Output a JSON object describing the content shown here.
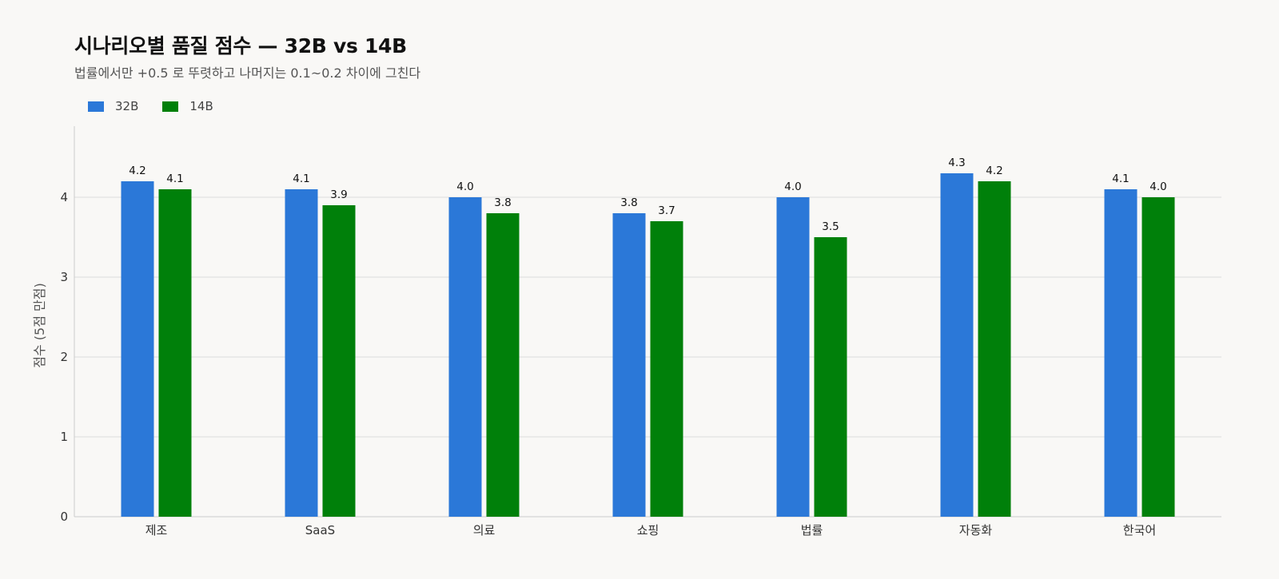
{
  "title": "시나리오별 품질 점수 — 32B vs 14B",
  "subtitle": "법률에서만 +0.5 로 뚜렷하고 나머지는 0.1~0.2 차이에 그친다",
  "colors": {
    "series_32b": "#2b78d8",
    "series_14b": "#00800a",
    "grid": "#dcdcdc",
    "axis": "#cccccc",
    "background": "#f9f8f6"
  },
  "chart_data": {
    "type": "bar",
    "categories": [
      "제조",
      "SaaS",
      "의료",
      "쇼핑",
      "법률",
      "자동화",
      "한국어"
    ],
    "series": [
      {
        "name": "32B",
        "values": [
          4.2,
          4.1,
          4.0,
          3.8,
          4.0,
          4.3,
          4.1
        ]
      },
      {
        "name": "14B",
        "values": [
          4.1,
          3.9,
          3.8,
          3.7,
          3.5,
          4.2,
          4.0
        ]
      }
    ],
    "value_labels": [
      [
        "4.2",
        "4.1",
        "4.0",
        "3.8",
        "4.0",
        "4.3",
        "4.1"
      ],
      [
        "4.1",
        "3.9",
        "3.8",
        "3.7",
        "3.5",
        "4.2",
        "4.0"
      ]
    ],
    "xlabel": "",
    "ylabel": "점수 (5점 만점)",
    "ylim": [
      0,
      5
    ],
    "yticks": [
      0,
      1,
      2,
      3,
      4
    ],
    "ytick_labels": [
      "0",
      "1",
      "2",
      "3",
      "4"
    ],
    "grid": true,
    "legend": "top-left"
  }
}
